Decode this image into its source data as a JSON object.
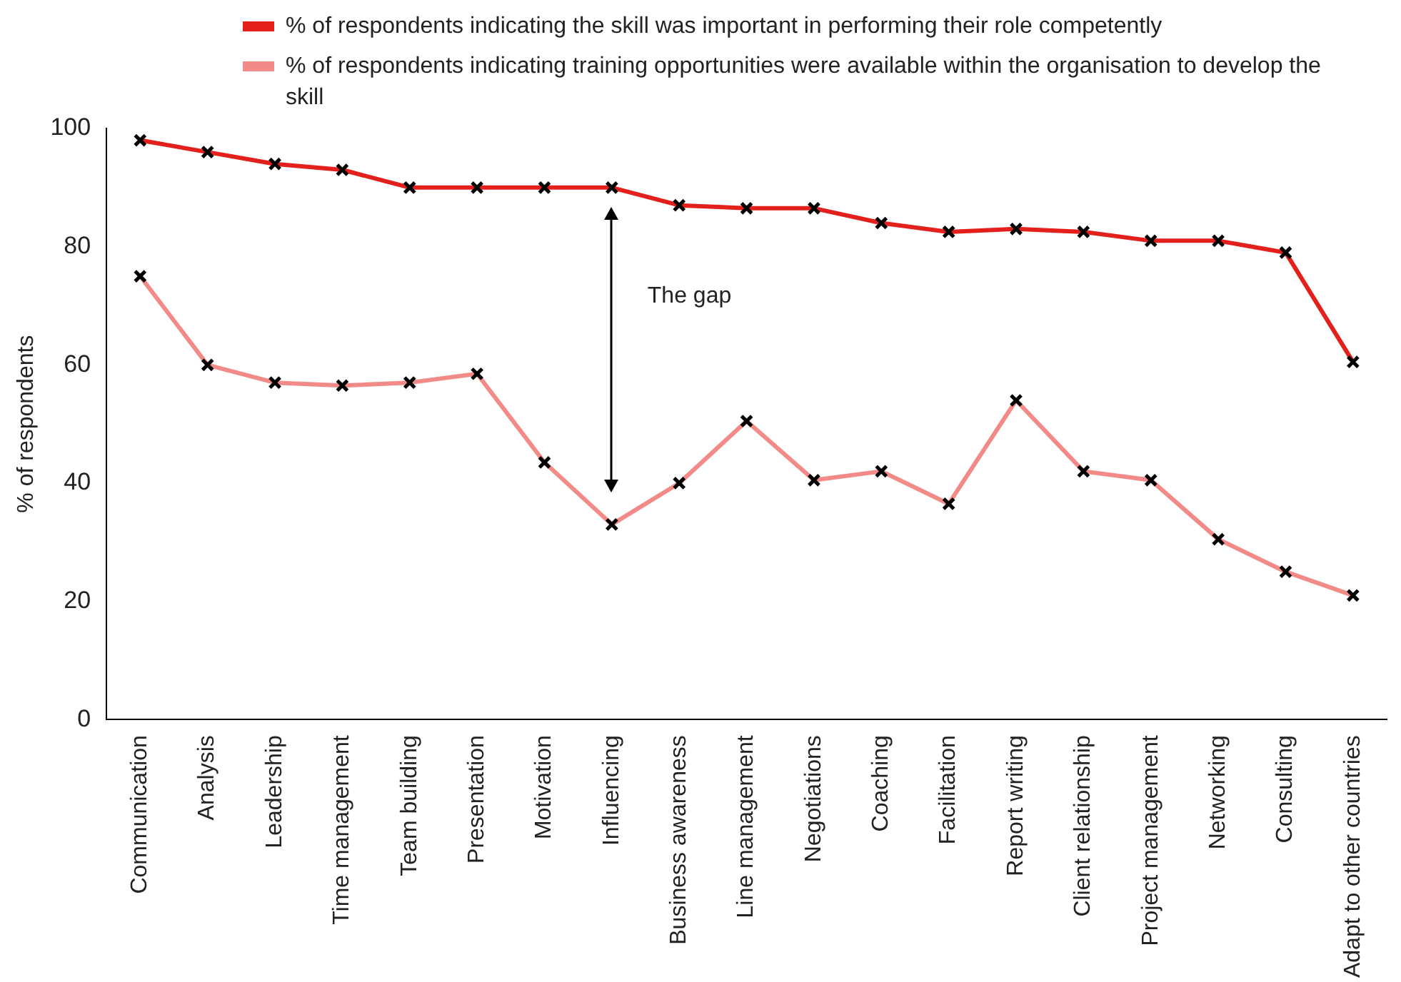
{
  "chart_data": {
    "type": "line",
    "ylabel": "% of respondents",
    "categories": [
      "Communication",
      "Analysis",
      "Leadership",
      "Time management",
      "Team building",
      "Presentation",
      "Motivation",
      "Influencing",
      "Business awareness",
      "Line management",
      "Negotiations",
      "Coaching",
      "Facilitation",
      "Report writing",
      "Client relationship",
      "Project management",
      "Networking",
      "Consulting",
      "Adapt to other countries"
    ],
    "series": [
      {
        "name": "% of respondents indicating the skill was important in performing their role competently",
        "color": "#e3201b",
        "values": [
          98,
          96,
          94,
          93,
          90,
          90,
          90,
          90,
          87,
          86.5,
          86.5,
          84,
          82.5,
          83,
          82.5,
          81,
          81,
          79,
          60.5
        ]
      },
      {
        "name": "% of respondents indicating training opportunities were available within the organisation to develop the skill",
        "color": "#f28b87",
        "values": [
          75,
          60,
          57,
          56.5,
          57,
          58.5,
          43.5,
          33,
          40,
          50.5,
          40.5,
          42,
          36.5,
          54,
          42,
          40.5,
          30.5,
          25,
          21
        ]
      }
    ],
    "ylim": [
      0,
      100
    ],
    "yticks": [
      0,
      20,
      40,
      60,
      80,
      100
    ],
    "grid": false,
    "legend": "top",
    "marker": "cross",
    "line_style": "solid",
    "annotations": [
      "The gap"
    ]
  }
}
